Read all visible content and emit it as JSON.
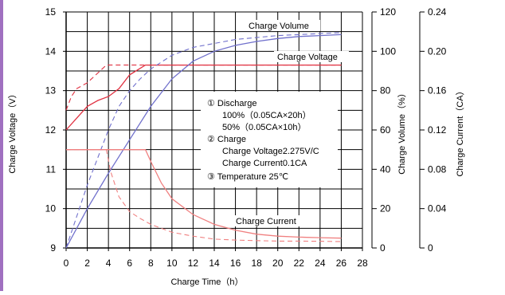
{
  "chart_data": {
    "type": "line",
    "xlabel": "Charge Time（h）",
    "ylabel_left": "Charge Voltage（V）",
    "ylabel_right1": "Charge Volume（%）",
    "ylabel_right2": "Charge Current（CA）",
    "x_ticks": [
      "0",
      "2",
      "4",
      "6",
      "8",
      "10",
      "12",
      "14",
      "16",
      "18",
      "20",
      "22",
      "24",
      "26",
      "28"
    ],
    "y_left_ticks": [
      "9",
      "10",
      "11",
      "12",
      "13",
      "14",
      "15"
    ],
    "y_right1_ticks": [
      "0",
      "20",
      "40",
      "60",
      "80",
      "100",
      "120"
    ],
    "y_right2_ticks": [
      "0",
      "0.04",
      "0.08",
      "0.12",
      "0.16",
      "0.20",
      "0.24"
    ],
    "xlim": [
      0,
      28
    ],
    "ylim_left": [
      9,
      15
    ],
    "ylim_right1": [
      0,
      120
    ],
    "ylim_right2": [
      0,
      0.24
    ],
    "grid": true,
    "annotations": {
      "charge_volume": "Charge Volume",
      "charge_voltage": "Charge Voltage",
      "charge_current": "Charge Current"
    },
    "legend_lines": [
      "① Discharge",
      "100%（0.05CA×20h）",
      "50%（0.05CA×10h）",
      "② Charge",
      "Charge Voltage2.275V/C",
      "Charge Current0.1CA",
      "③ Temperature 25℃"
    ],
    "colors": {
      "voltage": "#e03040",
      "current": "#f08080",
      "volume": "#7070cc",
      "grid": "#000000",
      "accent_bar": "#a070c0"
    },
    "series": [
      {
        "name": "Charge Voltage",
        "variant": "100%",
        "axis": "left",
        "style": "solid",
        "x": [
          0,
          1,
          2,
          3,
          4,
          5,
          6,
          7.5,
          8,
          10,
          12,
          14,
          16,
          18,
          20,
          22,
          24,
          26
        ],
        "values": [
          12.0,
          12.3,
          12.6,
          12.75,
          12.85,
          13.05,
          13.4,
          13.65,
          13.65,
          13.65,
          13.65,
          13.65,
          13.65,
          13.65,
          13.65,
          13.65,
          13.65,
          13.65
        ]
      },
      {
        "name": "Charge Voltage",
        "variant": "50%",
        "axis": "left",
        "style": "dashed",
        "x": [
          0,
          0.5,
          1,
          2,
          3,
          3.8,
          4,
          6,
          8,
          10,
          12,
          14,
          16,
          18,
          20,
          22,
          24,
          26
        ],
        "values": [
          12.5,
          12.85,
          13.05,
          13.2,
          13.45,
          13.65,
          13.65,
          13.65,
          13.65,
          13.65,
          13.65,
          13.65,
          13.65,
          13.65,
          13.65,
          13.65,
          13.65,
          13.65
        ]
      },
      {
        "name": "Charge Volume",
        "variant": "100%",
        "axis": "right1",
        "style": "solid",
        "x": [
          0,
          2,
          4,
          6,
          8,
          10,
          12,
          14,
          16,
          18,
          20,
          22,
          24,
          26
        ],
        "values": [
          0,
          20,
          38,
          55,
          72,
          86,
          95,
          100,
          103,
          105,
          106.5,
          107.5,
          108,
          108.5
        ]
      },
      {
        "name": "Charge Volume",
        "variant": "50%",
        "axis": "right1",
        "style": "dashed",
        "x": [
          0,
          1,
          2,
          3,
          4,
          5,
          6,
          7,
          8,
          10,
          12,
          14,
          16,
          18,
          20,
          22,
          24,
          26
        ],
        "values": [
          0,
          16,
          32,
          46,
          60,
          72,
          80,
          86,
          91,
          98,
          102,
          104,
          106,
          107,
          108,
          108.5,
          109,
          109.5
        ]
      },
      {
        "name": "Charge Current",
        "variant": "100%",
        "axis": "right2",
        "style": "solid",
        "x": [
          0,
          2,
          4,
          6,
          7.5,
          8,
          9,
          10,
          12,
          14,
          16,
          18,
          20,
          22,
          24,
          26
        ],
        "values": [
          0.1,
          0.1,
          0.1,
          0.1,
          0.1,
          0.088,
          0.066,
          0.05,
          0.034,
          0.024,
          0.018,
          0.014,
          0.012,
          0.011,
          0.0105,
          0.01
        ]
      },
      {
        "name": "Charge Current",
        "variant": "50%",
        "axis": "right2",
        "style": "dashed",
        "x": [
          0,
          2,
          3.8,
          4.2,
          5,
          6,
          7,
          8,
          10,
          12,
          14,
          16,
          18,
          20,
          22,
          24,
          26
        ],
        "values": [
          0.1,
          0.1,
          0.1,
          0.078,
          0.052,
          0.037,
          0.03,
          0.024,
          0.016,
          0.012,
          0.009,
          0.008,
          0.0075,
          0.007,
          0.007,
          0.0068,
          0.0065
        ]
      }
    ]
  }
}
